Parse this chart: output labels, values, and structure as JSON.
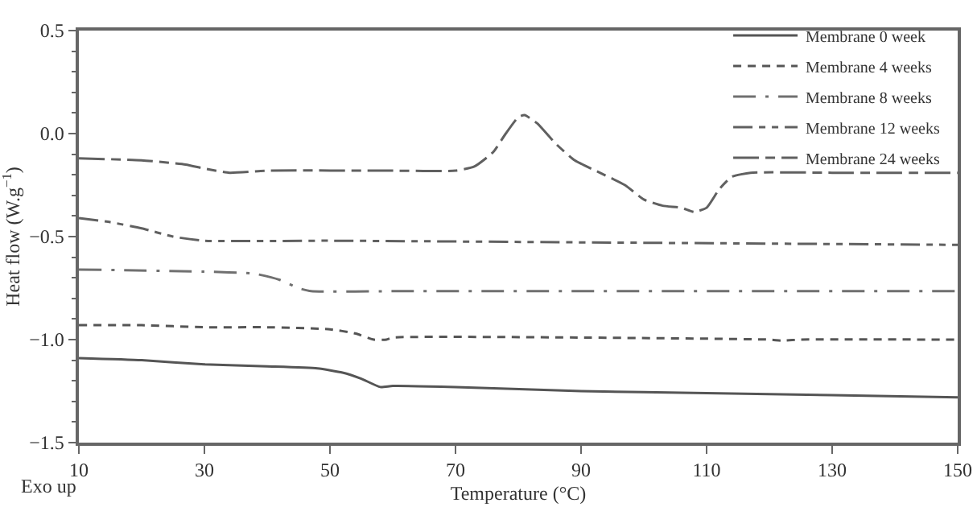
{
  "chart_data": {
    "type": "line",
    "xlabel": "Temperature (°C)",
    "ylabel": "Heat flow (W.g$^{−1}$)",
    "annotations": [
      "Exo up"
    ],
    "xlim": [
      10,
      150
    ],
    "xticks": [
      10,
      30,
      50,
      70,
      90,
      110,
      130,
      150
    ],
    "ylim": [
      -1.5,
      0.5
    ],
    "yticks": [
      {
        "value": -1.5,
        "label": "−1.5"
      },
      {
        "value": -1,
        "label": "−1.0"
      },
      {
        "value": -0.5,
        "label": "−0.5"
      },
      {
        "value": 0,
        "label": "0.0"
      },
      {
        "value": 0.5,
        "label": "0.5"
      }
    ],
    "grid": false,
    "legend": "top right",
    "marker": "none",
    "series": [
      {
        "name": "Membrane 0 week",
        "color": "#555555",
        "line_style": "solid",
        "x": [
          10,
          20,
          30,
          40,
          48,
          52,
          55,
          58,
          60,
          70,
          90,
          110,
          130,
          150
        ],
        "values": [
          -1.09,
          -1.1,
          -1.12,
          -1.13,
          -1.14,
          -1.16,
          -1.19,
          -1.23,
          -1.225,
          -1.23,
          -1.25,
          -1.26,
          -1.27,
          -1.28
        ]
      },
      {
        "name": "Membrane 4 weeks",
        "color": "#555555",
        "line_style": "dashed",
        "x": [
          10,
          20,
          30,
          40,
          50,
          54,
          57,
          59,
          60,
          90,
          120,
          122,
          125,
          150
        ],
        "values": [
          -0.93,
          -0.93,
          -0.94,
          -0.94,
          -0.95,
          -0.97,
          -1.0,
          -1.0,
          -0.99,
          -0.99,
          -1.0,
          -1.005,
          -1.0,
          -1.0
        ]
      },
      {
        "name": "Membrane 8 weeks",
        "color": "#707070",
        "line_style": "dashed",
        "x": [
          10,
          30,
          38,
          42,
          45,
          47,
          60,
          150
        ],
        "values": [
          -0.66,
          -0.67,
          -0.68,
          -0.71,
          -0.75,
          -0.765,
          -0.765,
          -0.765
        ]
      },
      {
        "name": "Membrane 12 weeks",
        "color": "#606060",
        "line_style": "dashed",
        "x": [
          10,
          15,
          20,
          25,
          30,
          50,
          100,
          150
        ],
        "values": [
          -0.41,
          -0.43,
          -0.46,
          -0.5,
          -0.52,
          -0.52,
          -0.53,
          -0.54
        ]
      },
      {
        "name": "Membrane 24 weeks",
        "color": "#606060",
        "line_style": "dashed",
        "x": [
          10,
          20,
          27,
          30,
          34,
          40,
          60,
          70,
          73,
          76,
          78,
          80,
          81,
          83,
          86,
          89,
          93,
          97,
          100,
          103,
          106,
          108,
          110,
          112,
          114,
          117,
          130,
          150
        ],
        "values": [
          -0.12,
          -0.13,
          -0.15,
          -0.17,
          -0.19,
          -0.18,
          -0.18,
          -0.18,
          -0.16,
          -0.09,
          0.0,
          0.08,
          0.09,
          0.05,
          -0.05,
          -0.13,
          -0.19,
          -0.25,
          -0.32,
          -0.35,
          -0.36,
          -0.38,
          -0.36,
          -0.27,
          -0.21,
          -0.19,
          -0.19,
          -0.19
        ]
      }
    ]
  }
}
